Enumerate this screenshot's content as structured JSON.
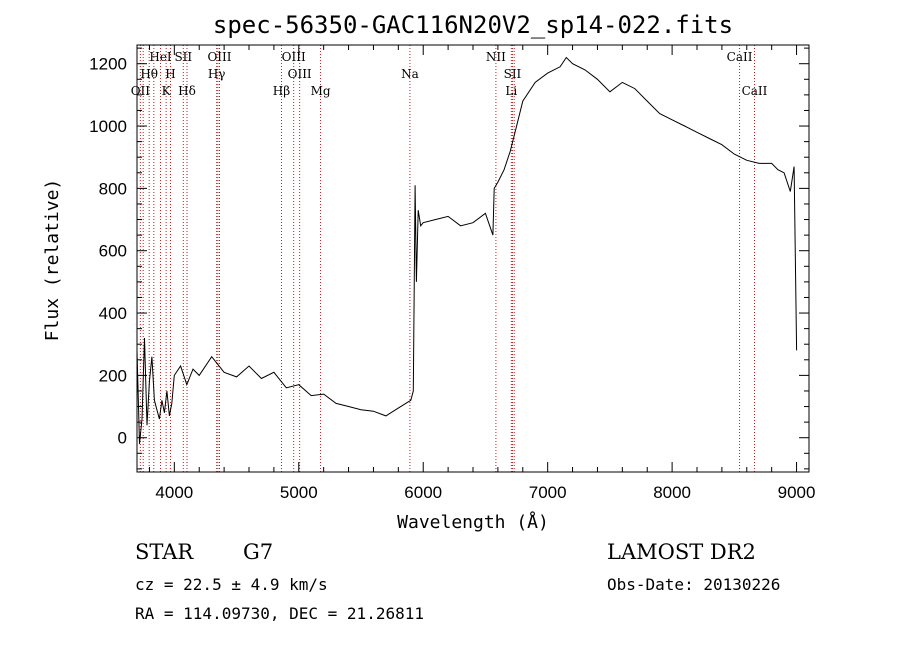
{
  "chart_data": {
    "type": "line",
    "title": "spec-56350-GAC116N20V2_sp14-022.fits",
    "xlabel": "Wavelength (Å)",
    "ylabel": "Flux (relative)",
    "xlim": [
      3700,
      9100
    ],
    "ylim": [
      -110,
      1260
    ],
    "x_ticks": [
      "4000",
      "5000",
      "6000",
      "7000",
      "8000",
      "9000"
    ],
    "y_ticks": [
      "0",
      "200",
      "400",
      "600",
      "800",
      "1000",
      "1200"
    ],
    "series": [
      {
        "x": [
          3700,
          3720,
          3740,
          3760,
          3780,
          3800,
          3820,
          3840,
          3860,
          3880,
          3900,
          3920,
          3940,
          3960,
          3980,
          4000,
          4050,
          4100,
          4150,
          4200,
          4300,
          4400,
          4500,
          4600,
          4700,
          4800,
          4900,
          5000,
          5100,
          5200,
          5300,
          5400,
          5500,
          5600,
          5700,
          5800,
          5900,
          5920,
          5935,
          5945,
          5960,
          5980,
          6000,
          6100,
          6200,
          6300,
          6400,
          6500,
          6560,
          6570,
          6600,
          6650,
          6700,
          6750,
          6800,
          6900,
          7000,
          7100,
          7150,
          7200,
          7300,
          7400,
          7500,
          7600,
          7700,
          7800,
          7900,
          8000,
          8100,
          8200,
          8300,
          8400,
          8500,
          8600,
          8700,
          8800,
          8850,
          8900,
          8950,
          8980,
          9000
        ],
        "y": [
          280,
          -20,
          60,
          320,
          40,
          180,
          260,
          120,
          90,
          60,
          120,
          80,
          150,
          70,
          110,
          200,
          230,
          170,
          220,
          200,
          260,
          210,
          195,
          230,
          190,
          210,
          160,
          170,
          135,
          140,
          110,
          100,
          90,
          85,
          70,
          95,
          120,
          150,
          810,
          500,
          730,
          680,
          690,
          700,
          710,
          680,
          690,
          720,
          650,
          800,
          820,
          860,
          920,
          1000,
          1080,
          1140,
          1170,
          1190,
          1220,
          1200,
          1180,
          1150,
          1110,
          1140,
          1120,
          1080,
          1040,
          1020,
          1000,
          980,
          960,
          940,
          910,
          890,
          880,
          880,
          860,
          850,
          790,
          870,
          280
        ]
      }
    ],
    "spectral_lines": {
      "top": [
        {
          "label": "HeI",
          "x": 3889
        },
        {
          "label": "SII",
          "x": 4072
        },
        {
          "label": "OIII",
          "x": 4363
        },
        {
          "label": "OIII",
          "x": 4959
        },
        {
          "label": "NII",
          "x": 6584
        },
        {
          "label": "CaII",
          "x": 8542
        }
      ],
      "middle": [
        {
          "label": "Hθ",
          "x": 3798
        },
        {
          "label": "H",
          "x": 3969
        },
        {
          "label": "Hγ",
          "x": 4340
        },
        {
          "label": "OIII",
          "x": 5007
        },
        {
          "label": "Na",
          "x": 5893
        },
        {
          "label": "SII",
          "x": 6717
        }
      ],
      "bottom": [
        {
          "label": "OII",
          "x": 3727
        },
        {
          "label": "K",
          "x": 3934
        },
        {
          "label": "Hδ",
          "x": 4102
        },
        {
          "label": "Hβ",
          "x": 4861
        },
        {
          "label": "Mg",
          "x": 5175
        },
        {
          "label": "Li",
          "x": 6708
        },
        {
          "label": "CaII",
          "x": 8662
        }
      ],
      "unlabeled_x": [
        3750,
        3835,
        4350,
        6731
      ]
    },
    "line_color": "#b22222",
    "grid": false,
    "legend": "none"
  },
  "info": {
    "object_class": "STAR",
    "subclass": "G7",
    "survey": "LAMOST DR2",
    "redshift": "cz = 22.5 ± 4.9 km/s",
    "obs_date": "Obs-Date: 20130226",
    "coords": "RA = 114.09730, DEC =  21.26811"
  }
}
